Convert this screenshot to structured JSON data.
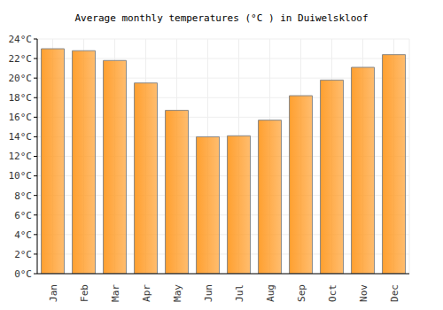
{
  "chart_data": {
    "type": "bar",
    "title": "Average monthly temperatures (°C ) in Duiwelskloof",
    "categories": [
      "Jan",
      "Feb",
      "Mar",
      "Apr",
      "May",
      "Jun",
      "Jul",
      "Aug",
      "Sep",
      "Oct",
      "Nov",
      "Dec"
    ],
    "values": [
      23.0,
      22.8,
      21.8,
      19.5,
      16.7,
      14.0,
      14.1,
      15.7,
      18.2,
      19.8,
      21.1,
      22.4
    ],
    "color": "#ffa030",
    "ylim": [
      0,
      24
    ],
    "yticks": [
      {
        "value": 0,
        "label": "0°C"
      },
      {
        "value": 2,
        "label": "2°C"
      },
      {
        "value": 4,
        "label": "4°C"
      },
      {
        "value": 6,
        "label": "6°C"
      },
      {
        "value": 8,
        "label": "8°C"
      },
      {
        "value": 10,
        "label": "10°C"
      },
      {
        "value": 12,
        "label": "12°C"
      },
      {
        "value": 14,
        "label": "14°C"
      },
      {
        "value": 16,
        "label": "16°C"
      },
      {
        "value": 18,
        "label": "18°C"
      },
      {
        "value": 20,
        "label": "20°C"
      },
      {
        "value": 22,
        "label": "22°C"
      },
      {
        "value": 24,
        "label": "24°C"
      }
    ],
    "grid": true
  }
}
